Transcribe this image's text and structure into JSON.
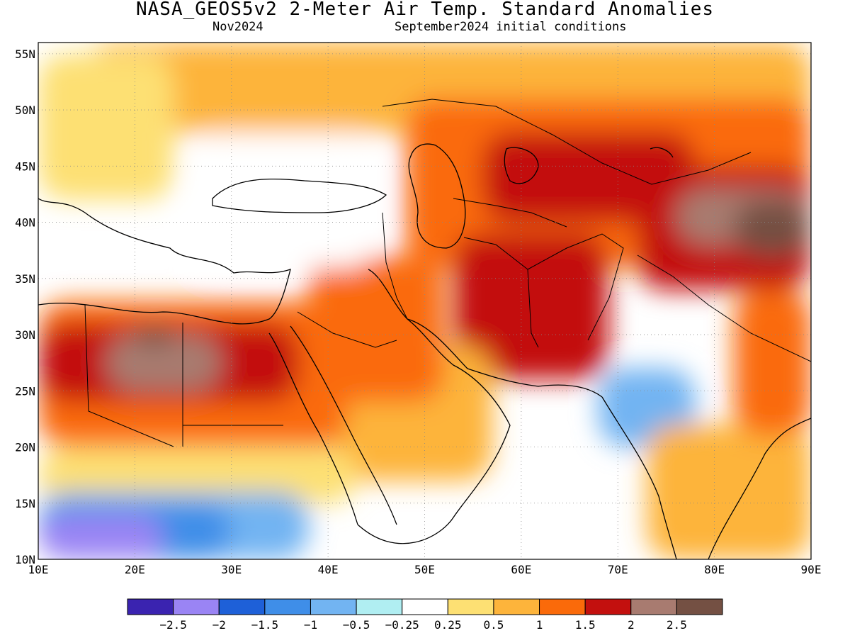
{
  "header": {
    "title": "NASA_GEOS5v2 2-Meter Air Temp. Standard Anomalies",
    "period": "Nov2024",
    "initial_conditions": "September2024 initial conditions"
  },
  "axes": {
    "lon_labels": [
      "10E",
      "20E",
      "30E",
      "40E",
      "50E",
      "60E",
      "70E",
      "80E",
      "90E"
    ],
    "lat_labels": [
      "55N",
      "50N",
      "45N",
      "40N",
      "35N",
      "30N",
      "25N",
      "20N",
      "15N",
      "10N"
    ],
    "lon_range": [
      10,
      90
    ],
    "lat_range": [
      10,
      56
    ],
    "grid": "dotted"
  },
  "colorbar": {
    "colors": [
      "#3a23b0",
      "#9a84f4",
      "#1e60d8",
      "#3f8ee8",
      "#72b4f2",
      "#b0eef2",
      "#ffffff",
      "#fde073",
      "#fdb43b",
      "#fa6a0a",
      "#c3100e",
      "#a87b70",
      "#745043"
    ],
    "labels": [
      "-2.5",
      "-2",
      "-1.5",
      "-1",
      "-0.5",
      "-0.25",
      "0.25",
      "0.5",
      "1",
      "1.5",
      "2",
      "2.5"
    ]
  },
  "regions": [
    {
      "name": "north-band",
      "color": "#fdb43b",
      "lon": [
        15,
        90
      ],
      "lat": [
        48,
        56
      ]
    },
    {
      "name": "central-asia-warm",
      "color": "#fa6a0a",
      "lon": [
        48,
        90
      ],
      "lat": [
        36,
        51
      ]
    },
    {
      "name": "kazakhstan-hot",
      "color": "#c3100e",
      "lon": [
        56,
        78
      ],
      "lat": [
        40,
        48
      ]
    },
    {
      "name": "iran-afghan-hot",
      "color": "#c3100e",
      "lon": [
        53,
        69
      ],
      "lat": [
        26,
        39
      ]
    },
    {
      "name": "tibet-hot",
      "color": "#c3100e",
      "lon": [
        72,
        90
      ],
      "lat": [
        34,
        45
      ]
    },
    {
      "name": "tibet-extreme",
      "color": "#a87b70",
      "lon": [
        76,
        90
      ],
      "lat": [
        38,
        43
      ]
    },
    {
      "name": "tibet-max",
      "color": "#745043",
      "lon": [
        82,
        90
      ],
      "lat": [
        37,
        42
      ]
    },
    {
      "name": "arabia-warm",
      "color": "#fdb43b",
      "lon": [
        40,
        57
      ],
      "lat": [
        17,
        29
      ]
    },
    {
      "name": "mideast-hot",
      "color": "#fa6a0a",
      "lon": [
        38,
        52
      ],
      "lat": [
        24,
        37
      ]
    },
    {
      "name": "sahara-warm",
      "color": "#fa6a0a",
      "lon": [
        10,
        42
      ],
      "lat": [
        20,
        33
      ]
    },
    {
      "name": "sahara-hot",
      "color": "#c3100e",
      "lon": [
        10,
        37
      ],
      "lat": [
        24,
        31
      ]
    },
    {
      "name": "libya-extreme",
      "color": "#a87b70",
      "lon": [
        17,
        29
      ],
      "lat": [
        25,
        30
      ]
    },
    {
      "name": "libya-max",
      "color": "#745043",
      "lon": [
        20,
        24
      ],
      "lat": [
        29,
        31
      ]
    },
    {
      "name": "sahel-warm",
      "color": "#fde073",
      "lon": [
        10,
        43
      ],
      "lat": [
        15,
        20
      ]
    },
    {
      "name": "sahel-cold",
      "color": "#72b4f2",
      "lon": [
        10,
        38
      ],
      "lat": [
        10,
        16
      ]
    },
    {
      "name": "sahel-colder",
      "color": "#3f8ee8",
      "lon": [
        10,
        30
      ],
      "lat": [
        10,
        15
      ]
    },
    {
      "name": "sahel-coldest",
      "color": "#9a84f4",
      "lon": [
        10,
        23
      ],
      "lat": [
        10,
        14
      ]
    },
    {
      "name": "india-cool",
      "color": "#72b4f2",
      "lon": [
        68,
        78
      ],
      "lat": [
        20,
        27
      ]
    },
    {
      "name": "india-warm",
      "color": "#fdb43b",
      "lon": [
        73,
        90
      ],
      "lat": [
        10,
        22
      ]
    },
    {
      "name": "bengal-hot",
      "color": "#fa6a0a",
      "lon": [
        82,
        90
      ],
      "lat": [
        21,
        34
      ]
    },
    {
      "name": "anatolia-neutral",
      "color": "#ffffff",
      "lon": [
        26,
        45
      ],
      "lat": [
        36,
        48
      ]
    },
    {
      "name": "europe-warm",
      "color": "#fde073",
      "lon": [
        10,
        24
      ],
      "lat": [
        42,
        55
      ]
    }
  ],
  "ticks_unit": "standard anomaly"
}
